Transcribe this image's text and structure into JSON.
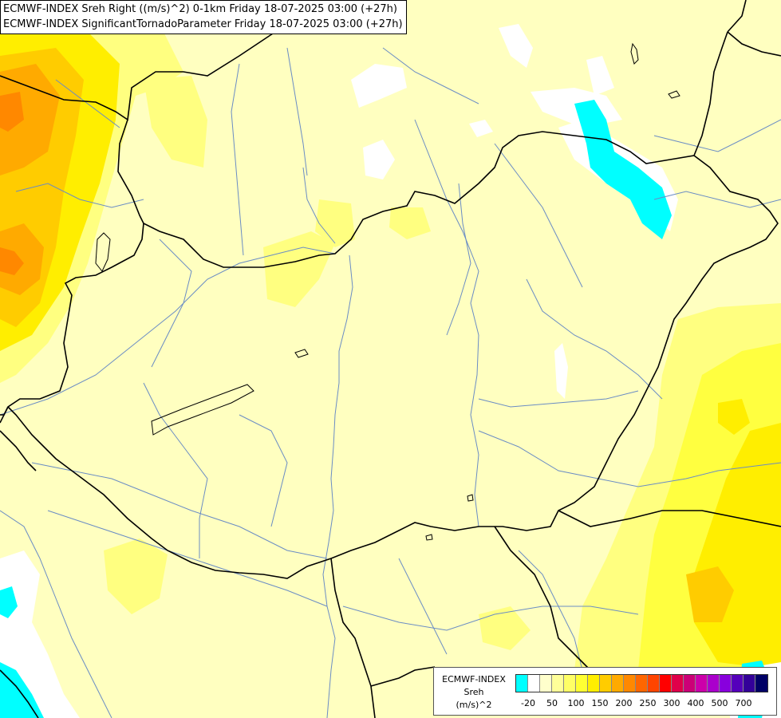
{
  "title_lines": [
    "ECMWF-INDEX Sreh Right ((m/s)^2) 0-1km Friday 18-07-2025 03:00 (+27h)",
    "ECMWF-INDEX SignificantTornadoParameter Friday 18-07-2025 03:00 (+27h)"
  ],
  "legend": {
    "model": "ECMWF-INDEX",
    "variable": "Sreh",
    "unit": "(m/s)^2",
    "colors": [
      "#00ffff",
      "#ffffff",
      "#ffffcc",
      "#ffff99",
      "#ffff66",
      "#ffff33",
      "#ffee00",
      "#ffcc00",
      "#ffaa00",
      "#ff8800",
      "#ff6600",
      "#ff4400",
      "#ff0000",
      "#e0004a",
      "#cc0077",
      "#cc00aa",
      "#aa00cc",
      "#8800dd",
      "#5500bb",
      "#330099",
      "#000066"
    ],
    "tick_labels": [
      "-20",
      "50",
      "100",
      "150",
      "200",
      "250",
      "300",
      "400",
      "500",
      "700"
    ]
  }
}
